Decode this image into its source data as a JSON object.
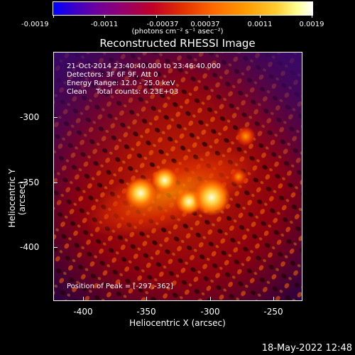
{
  "colorbar": {
    "ticks": [
      "-0.0019",
      "-0.0011",
      "-0.00037",
      "0.00037",
      "0.0011",
      "0.0019"
    ],
    "units": "(photons cm⁻² s⁻¹ asec⁻²)"
  },
  "title": "Reconstructed RHESSI Image",
  "annotations": {
    "time": "21-Oct-2014 23:40:40.000 to 23:46:40.000",
    "detectors": "Detectors: 3F 6F 9F, Att 0",
    "energy": "Energy Range: 12.0 - 25.0 keV",
    "clean": "Clean    Total counts: 6.23E+03",
    "peak": "Position of Peak = [-297,-362]"
  },
  "axes": {
    "xlabel": "Heliocentric X (arcsec)",
    "ylabel": "Heliocentric Y (arcsec)",
    "xticks": [
      "-400",
      "-350",
      "-300",
      "-250"
    ],
    "yticks": [
      "-300",
      "-350",
      "-400"
    ]
  },
  "datestamp": "18-May-2022 12:48"
}
